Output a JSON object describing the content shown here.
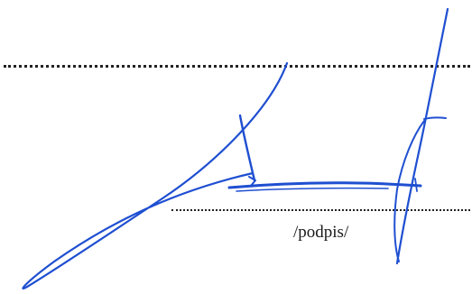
{
  "document": {
    "signature_caption": "/podpis/",
    "ink_color": "#1f4fd1",
    "line_color": "#222222"
  }
}
